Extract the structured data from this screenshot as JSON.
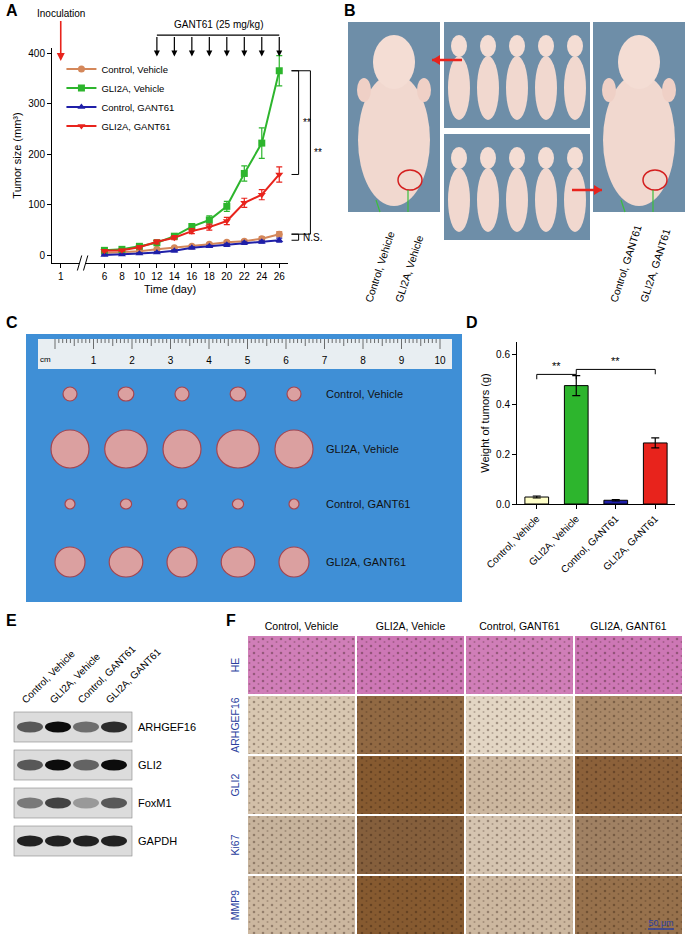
{
  "chart_data": [
    {
      "panel": "A",
      "type": "line",
      "x": [
        6,
        8,
        10,
        12,
        14,
        16,
        18,
        20,
        22,
        24,
        26
      ],
      "xlim": [
        0,
        27
      ],
      "xticks": [
        1,
        6,
        8,
        10,
        12,
        14,
        16,
        18,
        20,
        22,
        24,
        26
      ],
      "ylim": [
        -15,
        410
      ],
      "yticks": [
        0,
        100,
        200,
        300,
        400
      ],
      "x_title": "Time (day)",
      "y_title": "Tumor size (mm³)",
      "legend": "upper left",
      "grid": false,
      "series": [
        {
          "name": "Control, Vehicle",
          "color": "#d4875a",
          "marker": "circle",
          "line_style": "solid",
          "values": [
            5,
            6,
            8,
            12,
            15,
            18,
            22,
            26,
            28,
            33,
            42
          ],
          "errors": [
            1,
            1,
            1,
            2,
            2,
            2,
            3,
            3,
            3,
            4,
            5
          ]
        },
        {
          "name": "GLI2A, Vehicle",
          "color": "#2db52d",
          "marker": "square",
          "line_style": "solid",
          "values": [
            10,
            12,
            18,
            25,
            38,
            57,
            70,
            97,
            162,
            222,
            365
          ],
          "errors": [
            2,
            2,
            3,
            4,
            5,
            6,
            8,
            10,
            15,
            30,
            30
          ]
        },
        {
          "name": "Control, GANT61",
          "color": "#1f1fa8",
          "marker": "triangle-up",
          "line_style": "solid",
          "values": [
            1,
            2,
            4,
            6,
            9,
            15,
            18,
            21,
            25,
            27,
            30
          ],
          "errors": [
            1,
            1,
            1,
            1,
            2,
            2,
            2,
            3,
            3,
            3,
            4
          ]
        },
        {
          "name": "GLI2A, GANT61",
          "color": "#e8231c",
          "marker": "triangle-down",
          "line_style": "solid",
          "values": [
            9,
            10,
            16,
            27,
            35,
            48,
            56,
            68,
            104,
            120,
            160
          ],
          "errors": [
            2,
            2,
            3,
            4,
            4,
            5,
            6,
            7,
            9,
            10,
            15
          ]
        }
      ],
      "inoculation": {
        "text": "Inoculation",
        "day": 1
      },
      "treatment": {
        "text": "GANT61 (25 mg/kg)",
        "days": [
          12,
          14,
          16,
          18,
          20,
          22,
          24,
          26
        ]
      },
      "brackets": [
        {
          "text": "**",
          "between": [
            "GLI2A, Vehicle",
            "GLI2A, GANT61"
          ]
        },
        {
          "text": "**",
          "between": [
            "GLI2A, Vehicle",
            "Control, Vehicle"
          ]
        },
        {
          "text": "N.S.",
          "between": [
            "Control, Vehicle",
            "Control, GANT61"
          ]
        }
      ]
    },
    {
      "panel": "D",
      "type": "bar",
      "categories": [
        "Control, Vehicle",
        "GLI2A, Vehicle",
        "Control, GANT61",
        "GLI2A, GANT61"
      ],
      "values": [
        0.028,
        0.475,
        0.015,
        0.245
      ],
      "errors": [
        0.004,
        0.04,
        0.003,
        0.02
      ],
      "colors": [
        "#ffffc8",
        "#2db52d",
        "#1f1fa8",
        "#e8231c"
      ],
      "y_title": "Weight of tumors (g)",
      "ylim": [
        0,
        0.65
      ],
      "yticks": [
        {
          "value": 0,
          "label": "0.0"
        },
        0.2,
        0.4,
        0.6
      ],
      "grid": false,
      "brackets": [
        {
          "text": "**",
          "between": [
            "Control, Vehicle",
            "GLI2A, Vehicle"
          ],
          "y": 0.52
        },
        {
          "text": "**",
          "between": [
            "GLI2A, Vehicle",
            "GLI2A, GANT61"
          ],
          "y": 0.54
        }
      ]
    }
  ],
  "panels": {
    "B": {
      "label": "B",
      "left_labels": [
        "Control, Vehicle",
        "GLI2A, Vehicle"
      ],
      "right_labels": [
        "Control, GANT61",
        "GLI2A, GANT61"
      ]
    },
    "C": {
      "label": "C",
      "ruler_unit": "cm",
      "ruler_marks": [
        1,
        2,
        3,
        4,
        5,
        6,
        7,
        8,
        9,
        10
      ],
      "rows": [
        "Control, Vehicle",
        "GLI2A, Vehicle",
        "Control, GANT61",
        "GLI2A, GANT61"
      ]
    },
    "E": {
      "label": "E",
      "columns": [
        "Control, Vehicle",
        "GLI2A, Vehicle",
        "Control, GANT61",
        "GLI2A, GANT61"
      ],
      "rows": [
        {
          "label": "ARHGEF16",
          "band_intensity": [
            0.6,
            0.95,
            0.5,
            0.8
          ]
        },
        {
          "label": "GLI2",
          "band_intensity": [
            0.6,
            0.95,
            0.55,
            0.95
          ]
        },
        {
          "label": "FoxM1",
          "band_intensity": [
            0.45,
            0.7,
            0.3,
            0.6
          ]
        },
        {
          "label": "GAPDH",
          "band_intensity": [
            0.85,
            0.85,
            0.85,
            0.85
          ]
        }
      ]
    },
    "F": {
      "label": "F",
      "columns": [
        "Control, Vehicle",
        "GLI2A, Vehicle",
        "Control, GANT61",
        "GLI2A, GANT61"
      ],
      "rows": [
        {
          "label": "HE",
          "color": "#b8489a",
          "intensity": [
            0.6,
            0.65,
            0.6,
            0.65
          ]
        },
        {
          "label": "ARHGEF16",
          "color": "#7a4a1e",
          "intensity": [
            0.2,
            0.8,
            0.1,
            0.6
          ]
        },
        {
          "label": "GLI2",
          "color": "#7a4a1e",
          "intensity": [
            0.25,
            0.9,
            0.3,
            0.85
          ]
        },
        {
          "label": "Ki67",
          "color": "#6b3d16",
          "intensity": [
            0.3,
            0.8,
            0.2,
            0.6
          ]
        },
        {
          "label": "MMP9",
          "color": "#7a4a1e",
          "intensity": [
            0.3,
            0.9,
            0.3,
            0.75
          ]
        }
      ],
      "scale_bar": "50 μm"
    }
  }
}
